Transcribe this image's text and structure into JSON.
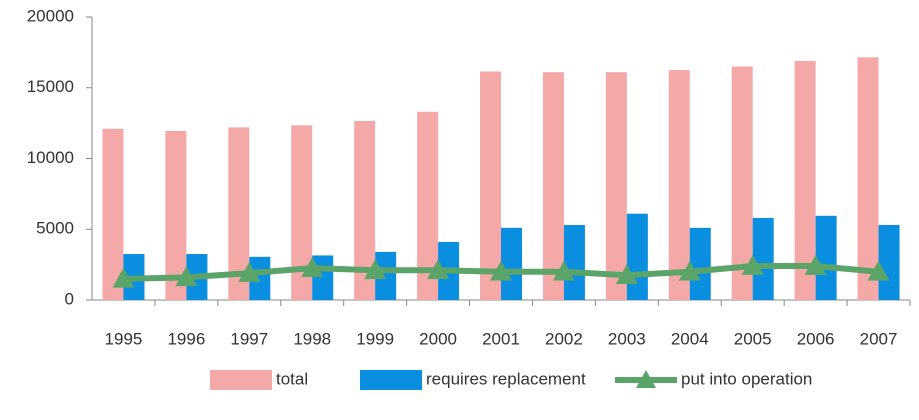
{
  "chart_data": {
    "type": "bar-line",
    "categories": [
      "1995",
      "1996",
      "1997",
      "1998",
      "1999",
      "2000",
      "2001",
      "2002",
      "2003",
      "2004",
      "2005",
      "2006",
      "2007"
    ],
    "series": [
      {
        "name": "total",
        "color": "#f4a9a8",
        "type": "bar",
        "values": [
          12100,
          11950,
          12200,
          12350,
          12650,
          13300,
          16150,
          16100,
          16100,
          16250,
          16500,
          16900,
          17150
        ]
      },
      {
        "name": "requires replacement",
        "color": "#0a8ee0",
        "type": "bar",
        "values": [
          3250,
          3250,
          3050,
          3150,
          3400,
          4100,
          5100,
          5300,
          6100,
          5100,
          5800,
          5950,
          5300
        ]
      },
      {
        "name": "put into operation",
        "color": "#5aa469",
        "type": "line",
        "values": [
          1500,
          1600,
          1900,
          2250,
          2100,
          2100,
          2000,
          2000,
          1750,
          2000,
          2400,
          2400,
          2000
        ]
      }
    ],
    "ylim": [
      0,
      20000
    ],
    "yticks": [
      0,
      5000,
      10000,
      15000,
      20000
    ],
    "grid": false,
    "legend": "bottom"
  }
}
